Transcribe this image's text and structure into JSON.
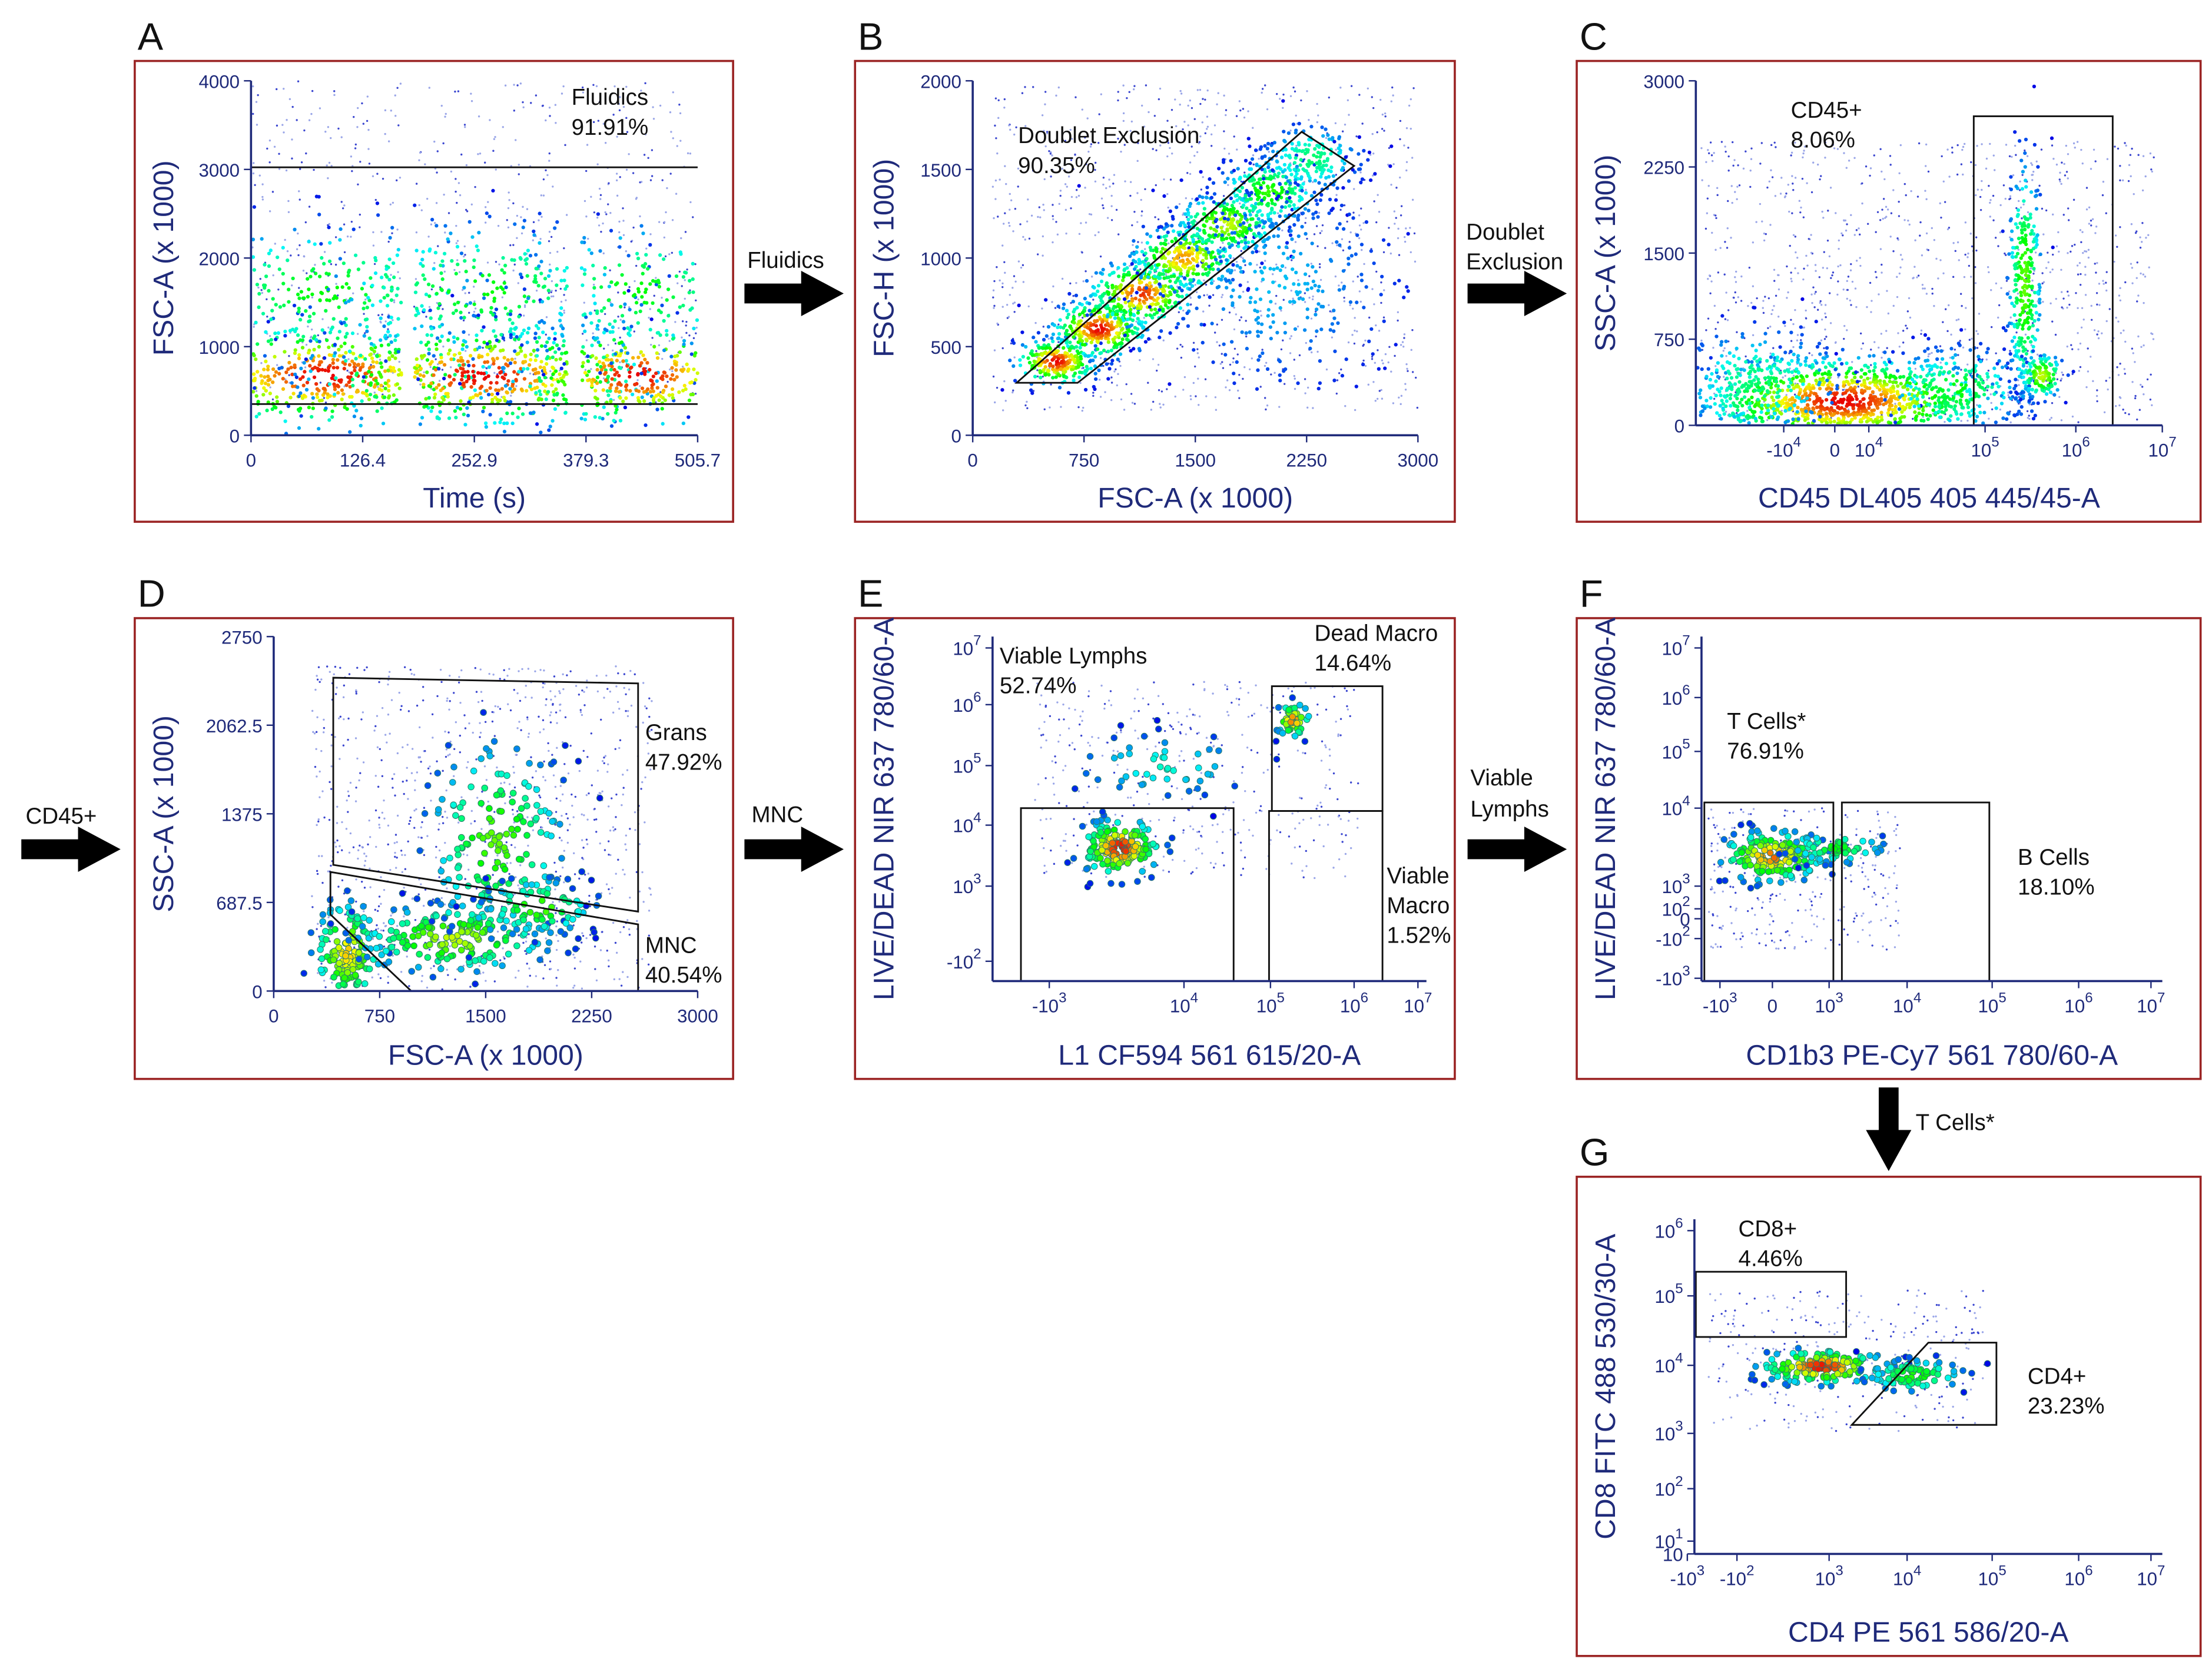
{
  "panels": [
    {
      "letter": "A",
      "x_label": "Time (s)",
      "y_label": "FSC-A (x 1000)",
      "x_ticks": [
        "0",
        "126.4",
        "252.9",
        "379.3",
        "505.7"
      ],
      "y_ticks": [
        "4000",
        "3000",
        "2000",
        "1000",
        "0"
      ],
      "gates": [
        {
          "lines": [
            "Fluidics",
            "91.91%"
          ]
        }
      ]
    },
    {
      "letter": "B",
      "x_label": "FSC-A (x 1000)",
      "y_label": "FSC-H (x 1000)",
      "x_ticks": [
        "0",
        "750",
        "1500",
        "2250",
        "3000"
      ],
      "y_ticks": [
        "2000",
        "1500",
        "1000",
        "500",
        "0"
      ],
      "gates": [
        {
          "lines": [
            "Doublet Exclusion",
            "90.35%"
          ]
        }
      ]
    },
    {
      "letter": "C",
      "x_label": "CD45 DL405 405 445/45-A",
      "y_label": "SSC-A (x 1000)",
      "x_ticks": [
        {
          "base": "-10",
          "exp": "4"
        },
        "0",
        {
          "base": "10",
          "exp": "4"
        },
        {
          "base": "10",
          "exp": "5"
        },
        {
          "base": "10",
          "exp": "6"
        },
        {
          "base": "10",
          "exp": "7"
        }
      ],
      "y_ticks": [
        "3000",
        "2250",
        "1500",
        "750",
        "0"
      ],
      "gates": [
        {
          "lines": [
            "CD45+",
            "8.06%"
          ]
        }
      ]
    },
    {
      "letter": "D",
      "x_label": "FSC-A (x 1000)",
      "y_label": "SSC-A (x 1000)",
      "x_ticks": [
        "0",
        "750",
        "1500",
        "2250",
        "3000"
      ],
      "y_ticks": [
        "2750",
        "2062.5",
        "1375",
        "687.5",
        "0"
      ],
      "gates": [
        {
          "lines": [
            "Grans",
            "47.92%"
          ]
        },
        {
          "lines": [
            "MNC",
            "40.54%"
          ]
        }
      ]
    },
    {
      "letter": "E",
      "x_label": "L1 CF594 561 615/20-A",
      "y_label": "LIVE/DEAD NIR 637 780/60-A",
      "x_ticks": [
        {
          "base": "-10",
          "exp": "3"
        },
        {
          "base": "10",
          "exp": "4"
        },
        {
          "base": "10",
          "exp": "5"
        },
        {
          "base": "10",
          "exp": "6"
        },
        {
          "base": "10",
          "exp": "7"
        }
      ],
      "y_ticks": [
        {
          "base": "10",
          "exp": "7"
        },
        {
          "base": "10",
          "exp": "6"
        },
        {
          "base": "10",
          "exp": "5"
        },
        {
          "base": "10",
          "exp": "4"
        },
        {
          "base": "10",
          "exp": "3"
        },
        {
          "base": "-10",
          "exp": "2"
        }
      ],
      "gates": [
        {
          "lines": [
            "Viable Lymphs",
            "52.74%"
          ]
        },
        {
          "lines": [
            "Dead Macro",
            "14.64%"
          ]
        },
        {
          "lines": [
            "Viable",
            "Macro",
            "1.52%"
          ]
        }
      ]
    },
    {
      "letter": "F",
      "x_label": "CD1b3 PE-Cy7 561 780/60-A",
      "y_label": "LIVE/DEAD NIR 637 780/60-A",
      "x_ticks": [
        {
          "base": "-10",
          "exp": "3"
        },
        "0",
        {
          "base": "10",
          "exp": "3"
        },
        {
          "base": "10",
          "exp": "4"
        },
        {
          "base": "10",
          "exp": "5"
        },
        {
          "base": "10",
          "exp": "6"
        },
        {
          "base": "10",
          "exp": "7"
        }
      ],
      "y_ticks": [
        {
          "base": "10",
          "exp": "7"
        },
        {
          "base": "10",
          "exp": "6"
        },
        {
          "base": "10",
          "exp": "5"
        },
        {
          "base": "10",
          "exp": "4"
        },
        {
          "base": "10",
          "exp": "3"
        },
        {
          "base": "10",
          "exp": "2"
        },
        "0",
        {
          "base": "-10",
          "exp": "2"
        },
        {
          "base": "-10",
          "exp": "3"
        }
      ],
      "gates": [
        {
          "lines": [
            "T Cells*",
            "76.91%"
          ]
        },
        {
          "lines": [
            "B Cells",
            "18.10%"
          ]
        }
      ]
    },
    {
      "letter": "G",
      "x_label": "CD4 PE 561 586/20-A",
      "y_label": "CD8 FITC 488 530/30-A",
      "x_ticks": [
        {
          "base": "-10",
          "exp": "3"
        },
        {
          "base": "-10",
          "exp": "2"
        },
        {
          "base": "10",
          "exp": "3"
        },
        {
          "base": "10",
          "exp": "4"
        },
        {
          "base": "10",
          "exp": "5"
        },
        {
          "base": "10",
          "exp": "6"
        },
        {
          "base": "10",
          "exp": "7"
        }
      ],
      "y_ticks": [
        {
          "base": "10",
          "exp": "6"
        },
        {
          "base": "10",
          "exp": "5"
        },
        {
          "base": "10",
          "exp": "4"
        },
        {
          "base": "10",
          "exp": "3"
        },
        {
          "base": "10",
          "exp": "2"
        },
        {
          "base": "10",
          "exp": "1"
        },
        "10"
      ],
      "gates": [
        {
          "lines": [
            "CD8+",
            "4.46%"
          ]
        },
        {
          "lines": [
            "CD4+",
            "23.23%"
          ]
        }
      ]
    }
  ],
  "arrows": [
    {
      "lines": [
        "Fluidics"
      ]
    },
    {
      "lines": [
        "Doublet",
        "Exclusion"
      ]
    },
    {
      "lines": [
        "CD45+"
      ]
    },
    {
      "lines": [
        "MNC"
      ]
    },
    {
      "lines": [
        "Viable",
        "Lymphs"
      ]
    },
    {
      "lines": [
        "T Cells*"
      ]
    }
  ]
}
